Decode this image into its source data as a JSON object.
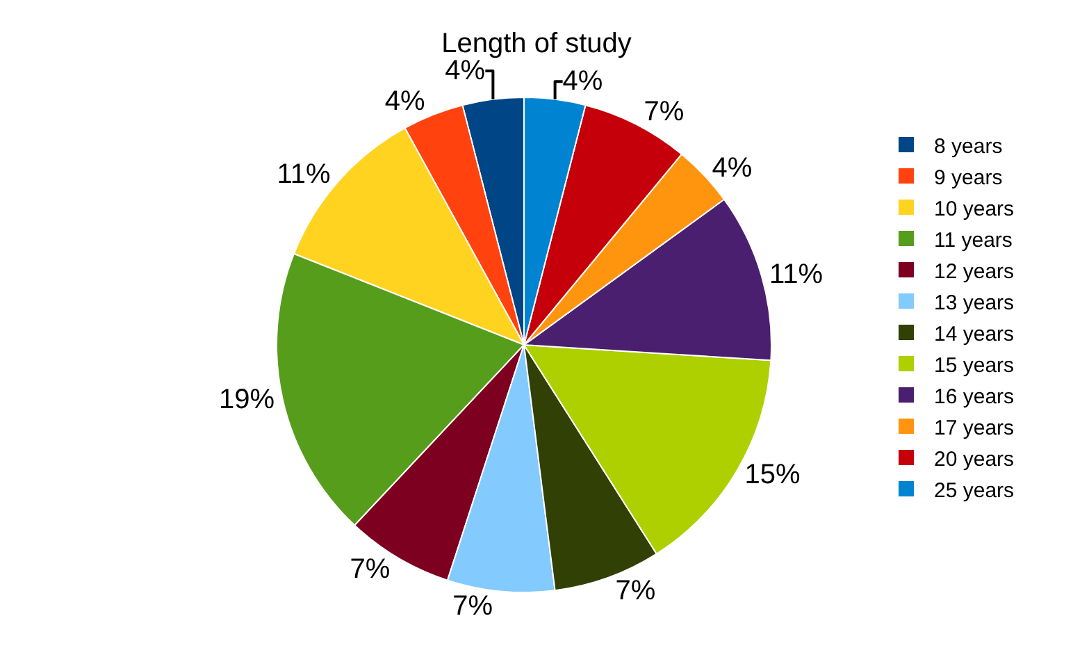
{
  "chart_data": {
    "type": "pie",
    "title": "Length of study",
    "categories": [
      "8 years",
      "9 years",
      "10 years",
      "11 years",
      "12 years",
      "13 years",
      "14 years",
      "15 years",
      "16 years",
      "17 years",
      "20 years",
      "25 years"
    ],
    "values": [
      4,
      4,
      11,
      19,
      7,
      7,
      7,
      15,
      11,
      4,
      7,
      4
    ],
    "value_labels": [
      "4%",
      "4%",
      "11%",
      "19%",
      "7%",
      "7%",
      "7%",
      "15%",
      "11%",
      "4%",
      "7%",
      "4%"
    ],
    "colors": [
      "#004586",
      "#ff420e",
      "#ffd320",
      "#579d1c",
      "#7e0021",
      "#83caff",
      "#314004",
      "#aecf00",
      "#4b1f6f",
      "#ff950e",
      "#c5000b",
      "#0084d1"
    ],
    "legend": "right"
  }
}
